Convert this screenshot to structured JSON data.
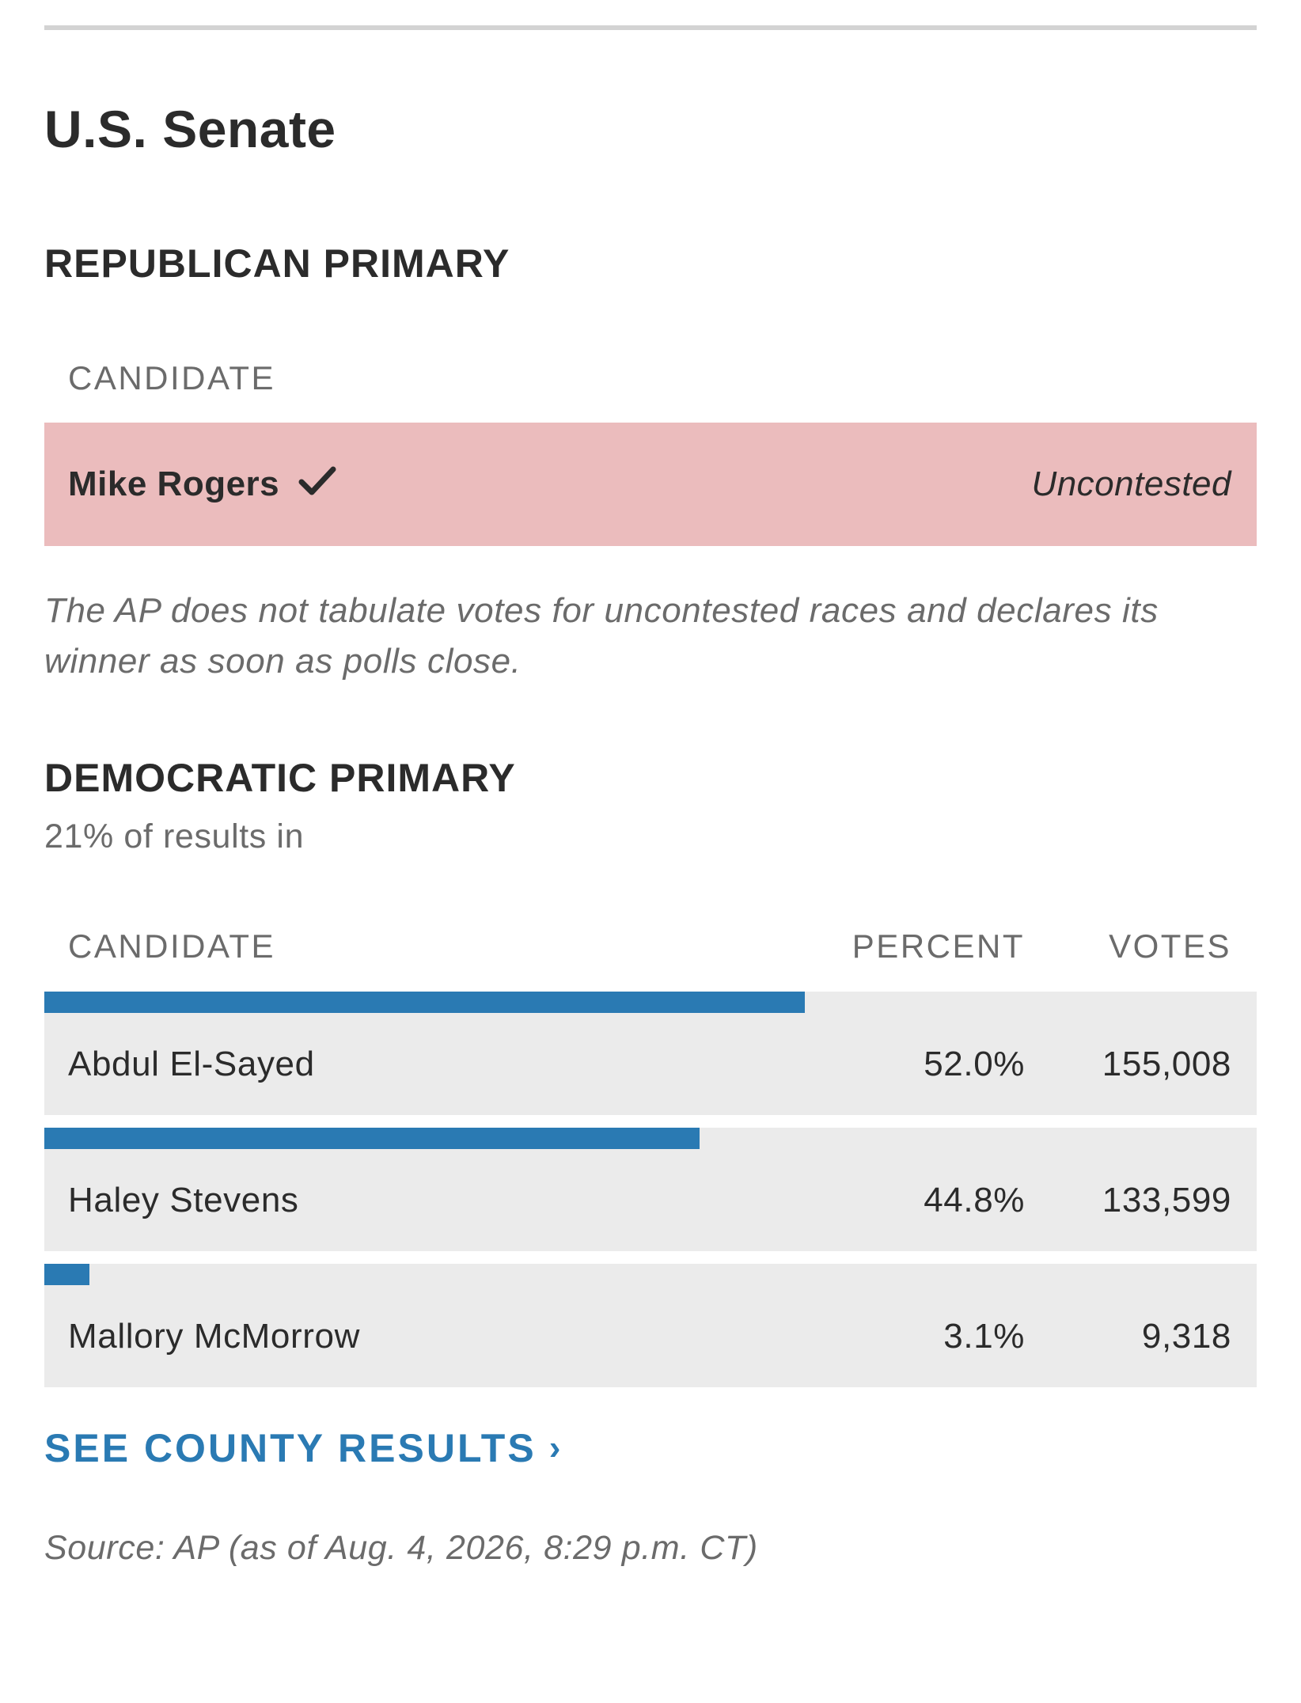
{
  "race": {
    "title": "U.S. Senate"
  },
  "republican": {
    "heading": "REPUBLICAN PRIMARY",
    "column_candidate": "CANDIDATE",
    "winner_name": "Mike Rogers",
    "winner_icon": "checkmark-icon",
    "status": "Uncontested",
    "row_color": "#ebbcbd",
    "note": "The AP does not tabulate votes for uncontested races and declares its winner as soon as polls close."
  },
  "democratic": {
    "heading": "DEMOCRATIC PRIMARY",
    "results_in": "21% of results in",
    "columns": {
      "candidate": "CANDIDATE",
      "percent": "PERCENT",
      "votes": "VOTES"
    },
    "bar_color": "#2a7ab3",
    "candidates": [
      {
        "name": "Abdul El-Sayed",
        "percent": "52.0%",
        "votes": "155,008",
        "share": 0.52
      },
      {
        "name": "Haley Stevens",
        "percent": "44.8%",
        "votes": "133,599",
        "share": 0.448
      },
      {
        "name": "Mallory McMorrow",
        "percent": "3.1%",
        "votes": "9,318",
        "share": 0.031
      }
    ]
  },
  "links": {
    "county_results": "SEE COUNTY RESULTS",
    "county_results_icon": "chevron-right-icon",
    "chevron": "›"
  },
  "source": "Source: AP (as of Aug. 4, 2026, 8:29 p.m. CT)"
}
